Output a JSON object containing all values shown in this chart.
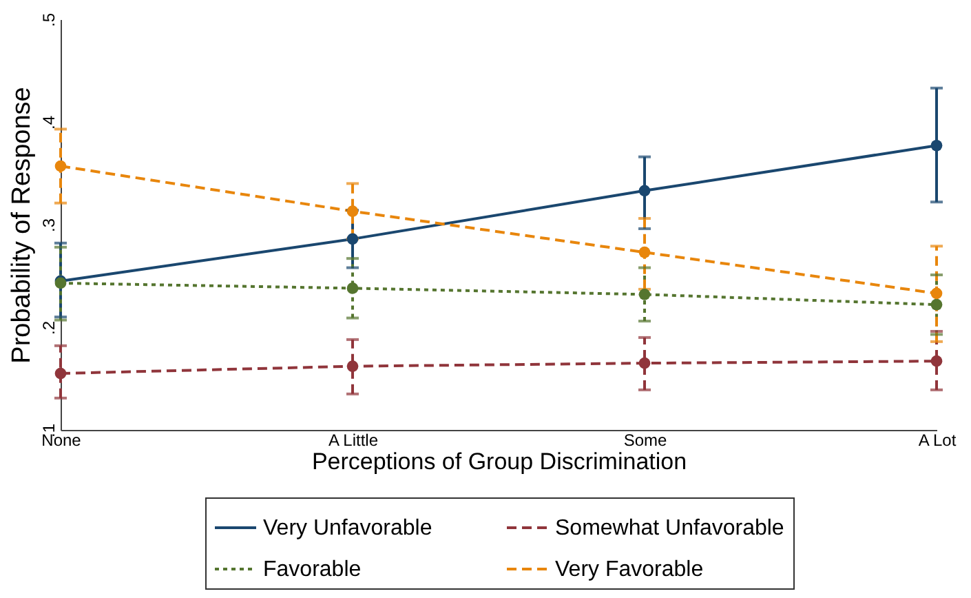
{
  "chart_data": {
    "type": "line",
    "xlabel": "Perceptions of Group Discrimination",
    "ylabel": "Probability of Response",
    "categories": [
      "None",
      "A Little",
      "Some",
      "A Lot"
    ],
    "ylim": [
      0.1,
      0.5
    ],
    "yticks": [
      {
        "value": 0.1,
        "label": ".1"
      },
      {
        "value": 0.2,
        "label": ".2"
      },
      {
        "value": 0.3,
        "label": ".3"
      },
      {
        "value": 0.4,
        "label": ".4"
      },
      {
        "value": 0.5,
        "label": ".5"
      }
    ],
    "legend": "bottom",
    "marker": "circle",
    "series": [
      {
        "name": "Very Unfavorable",
        "color": "#1a476f",
        "line_style": "solid",
        "values": [
          0.245,
          0.286,
          0.333,
          0.377
        ],
        "errors": [
          [
            0.21,
            0.282
          ],
          [
            0.258,
            0.314
          ],
          [
            0.296,
            0.366
          ],
          [
            0.322,
            0.433
          ]
        ]
      },
      {
        "name": "Somewhat Unfavorable",
        "color": "#90353b",
        "line_style": "dashed",
        "values": [
          0.155,
          0.162,
          0.165,
          0.167
        ],
        "errors": [
          [
            0.131,
            0.182
          ],
          [
            0.135,
            0.188
          ],
          [
            0.139,
            0.19
          ],
          [
            0.139,
            0.196
          ]
        ]
      },
      {
        "name": "Favorable",
        "color": "#55752f",
        "line_style": "dotted",
        "values": [
          0.243,
          0.238,
          0.232,
          0.222
        ],
        "errors": [
          [
            0.207,
            0.278
          ],
          [
            0.209,
            0.267
          ],
          [
            0.206,
            0.258
          ],
          [
            0.193,
            0.251
          ]
        ]
      },
      {
        "name": "Very Favorable",
        "color": "#e8860c",
        "line_style": "dashed",
        "values": [
          0.357,
          0.313,
          0.273,
          0.233
        ],
        "errors": [
          [
            0.321,
            0.393
          ],
          [
            0.286,
            0.34
          ],
          [
            0.237,
            0.306
          ],
          [
            0.186,
            0.279
          ]
        ]
      }
    ]
  }
}
